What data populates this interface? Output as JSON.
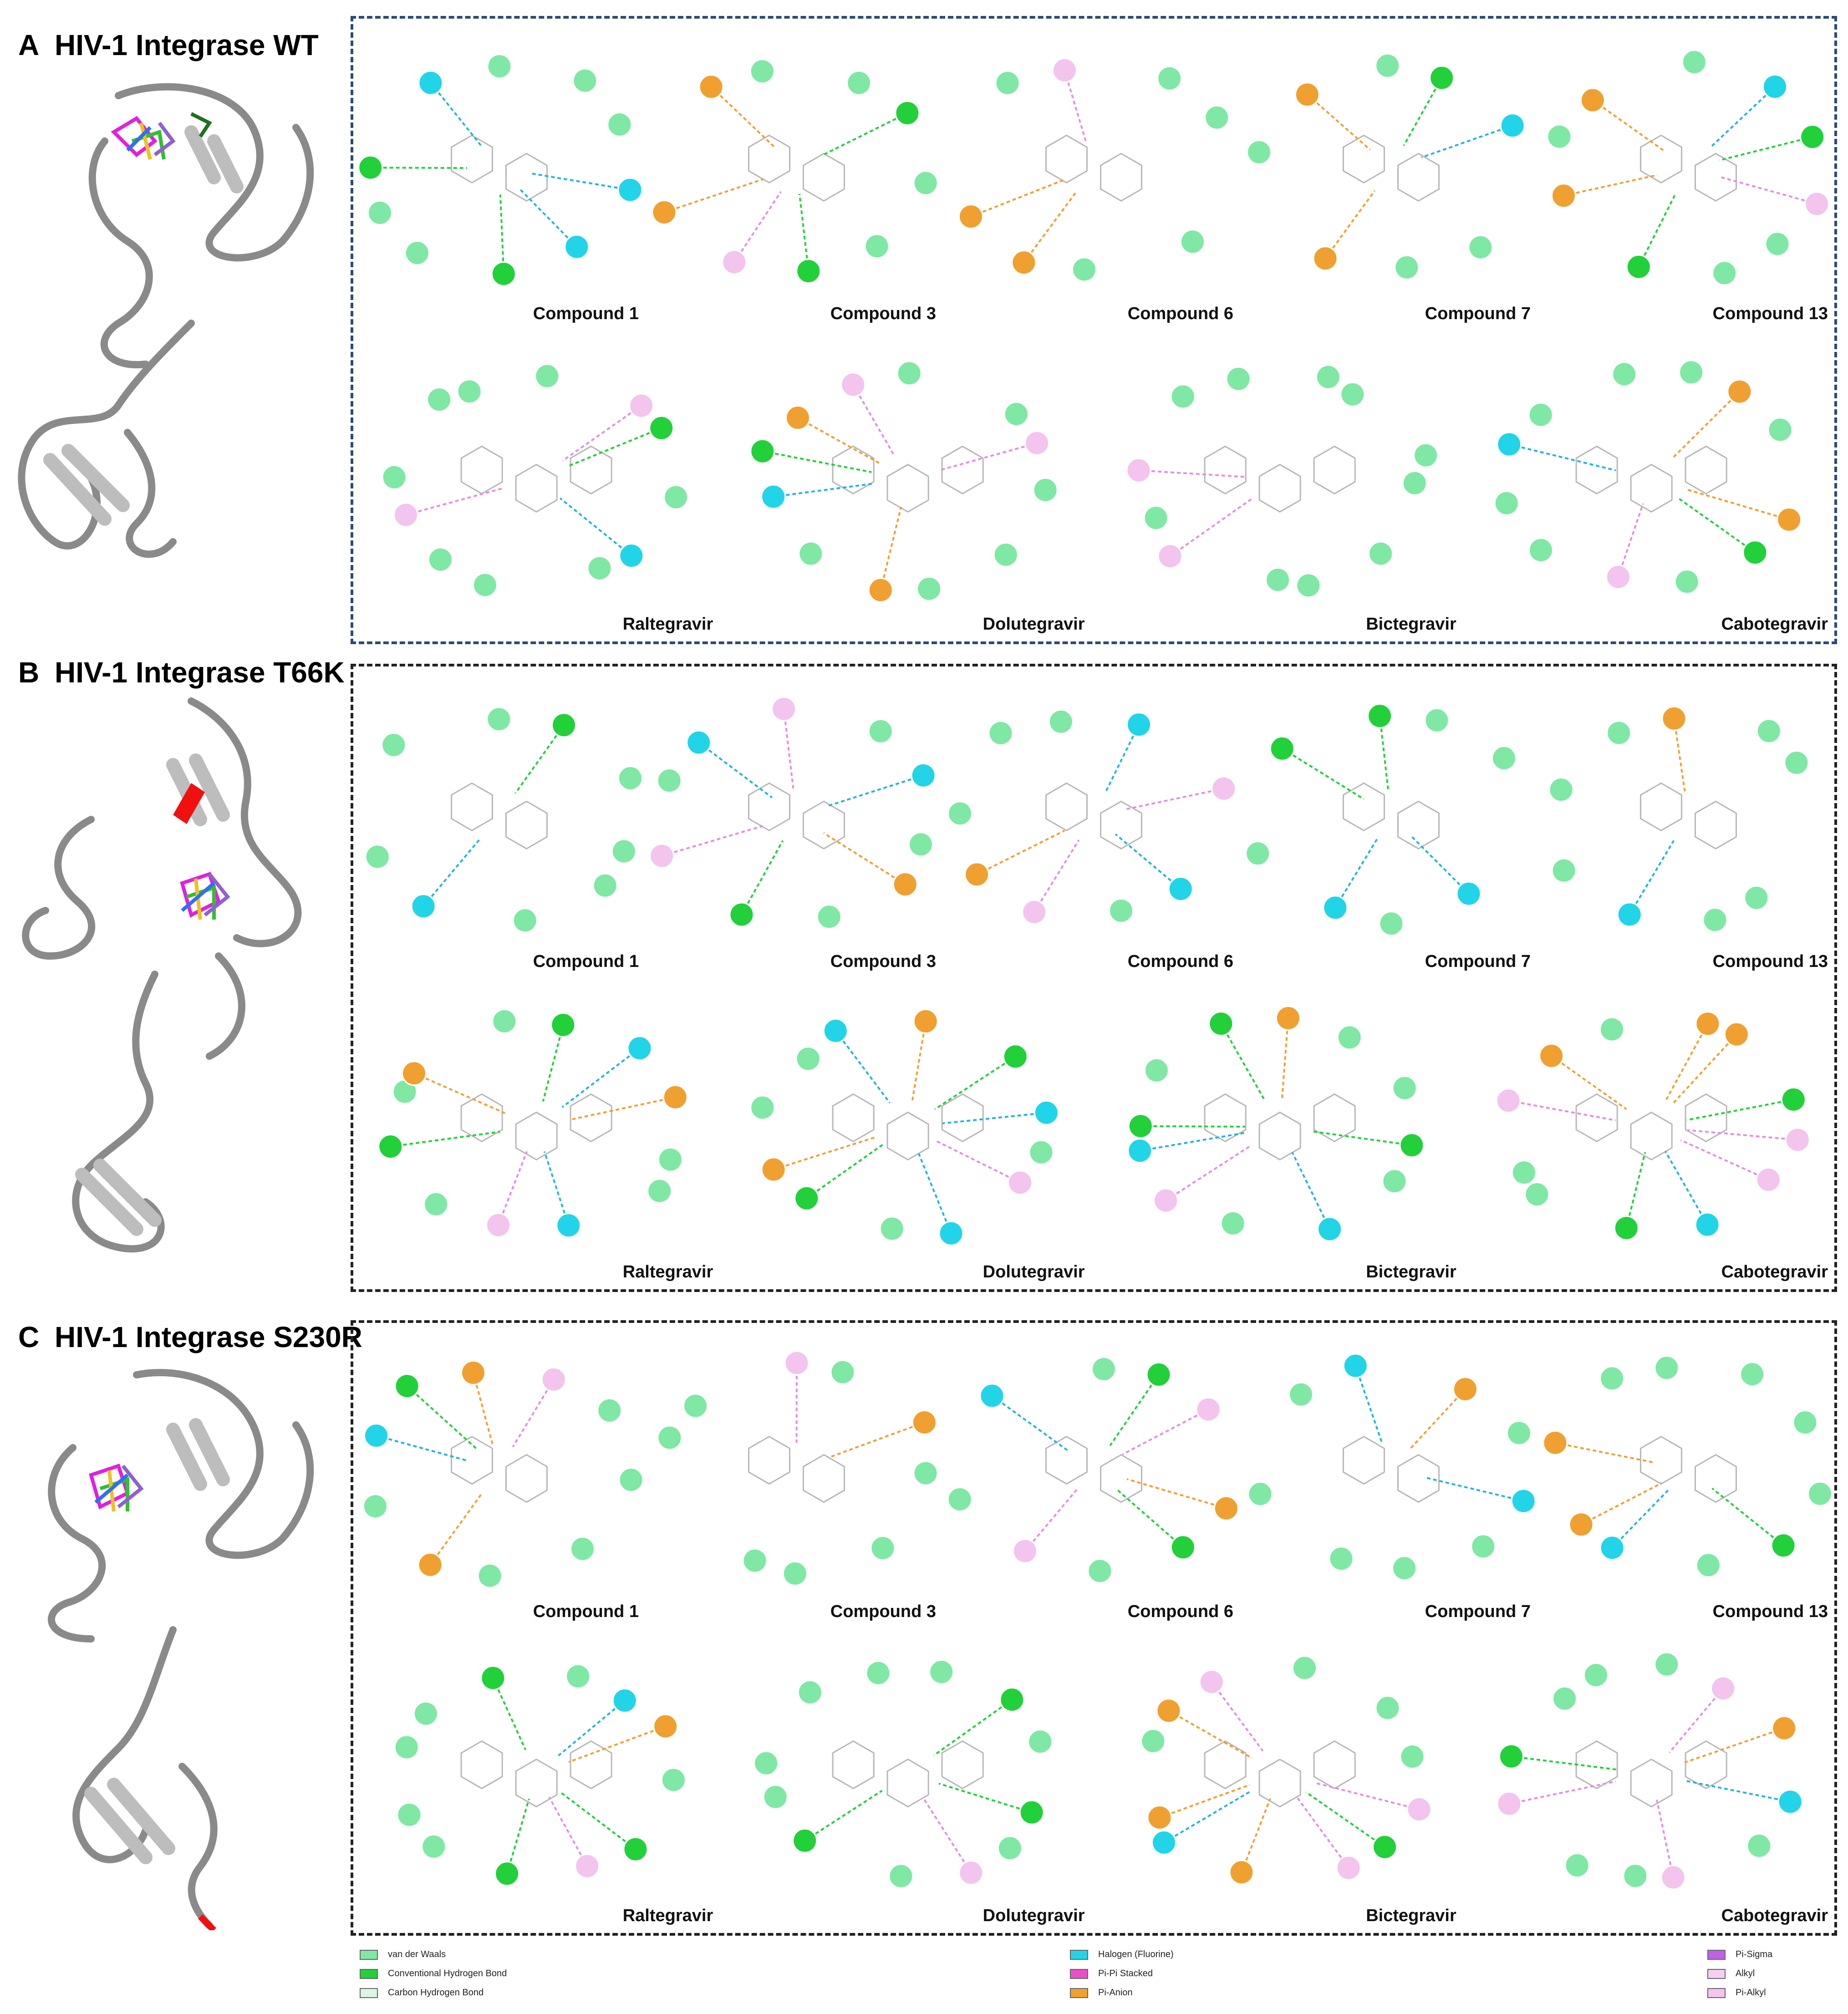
{
  "panels": [
    {
      "letter": "A",
      "title": "HIV-1 Integrase WT"
    },
    {
      "letter": "B",
      "title": "HIV-1 Integrase T66K"
    },
    {
      "letter": "C",
      "title": "HIV-1 Integrase S230R"
    }
  ],
  "compounds_row1": [
    "Compound 1",
    "Compound 3",
    "Compound 6",
    "Compound 7",
    "Compound 13"
  ],
  "compounds_row2": [
    "Raltegravir",
    "Dolutegravir",
    "Bictegravir",
    "Cabotegravir"
  ],
  "legend": {
    "vdw": "van der Waals",
    "hbond": "Conventional Hydrogen Bond",
    "chbond": "Carbon Hydrogen Bond",
    "halogen": "Halogen (Fluorine)",
    "pipi": "Pi-Pi Stacked",
    "pianion": "Pi-Anion",
    "pisigma": "Pi-Sigma",
    "alkyl": "Alkyl",
    "pialkyl": "Pi-Alkyl"
  },
  "colors": {
    "vdw": "#7fe8a4",
    "hbond": "#22d03a",
    "chbond": "#d9f7e2",
    "halogen": "#22d4e8",
    "pipi": "#e84fc8",
    "pianion": "#f0a030",
    "pisigma": "#c060e8",
    "alkyl": "#f4d0f0",
    "pialkyl": "#f2c4ee"
  }
}
